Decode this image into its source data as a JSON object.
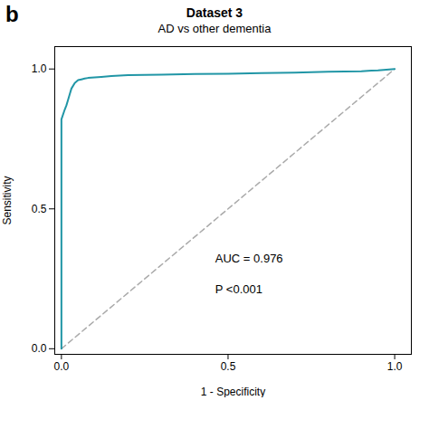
{
  "chart_data": {
    "type": "line",
    "title": "Dataset 3",
    "subtitle": "AD vs other dementia",
    "panel_label": "b",
    "xlabel": "1 - Specificity",
    "ylabel": "Sensitivity",
    "annotations": [
      "AUC = 0.976",
      "P <0.001"
    ],
    "series": [
      {
        "color": "#AAAAAA",
        "line_style": "dashed",
        "x": [
          0,
          1
        ],
        "values": [
          0,
          1
        ]
      },
      {
        "color": "#2196A6",
        "line_style": "solid",
        "x": [
          0.0,
          0.0,
          0.01,
          0.015,
          0.02,
          0.025,
          0.03,
          0.04,
          0.05,
          0.06,
          0.07,
          0.08,
          0.1,
          0.12,
          0.15,
          0.2,
          0.3,
          0.4,
          0.5,
          0.6,
          0.7,
          0.8,
          0.85,
          0.9,
          0.93,
          0.95,
          1.0
        ],
        "values": [
          0.0,
          0.82,
          0.855,
          0.87,
          0.89,
          0.91,
          0.93,
          0.95,
          0.96,
          0.963,
          0.966,
          0.968,
          0.97,
          0.972,
          0.975,
          0.978,
          0.98,
          0.982,
          0.983,
          0.985,
          0.987,
          0.99,
          0.991,
          0.992,
          0.994,
          0.995,
          1.0
        ]
      }
    ],
    "xlim": [
      -0.02,
      1.05
    ],
    "ylim": [
      -0.02,
      1.08
    ],
    "xticks": [
      {
        "value": 0,
        "label": "0.0"
      },
      0.5,
      {
        "value": 1,
        "label": "1.0"
      }
    ],
    "yticks": [
      {
        "value": 0,
        "label": "0.0"
      },
      0.5,
      {
        "value": 1,
        "label": "1.0"
      }
    ],
    "grid": false
  }
}
